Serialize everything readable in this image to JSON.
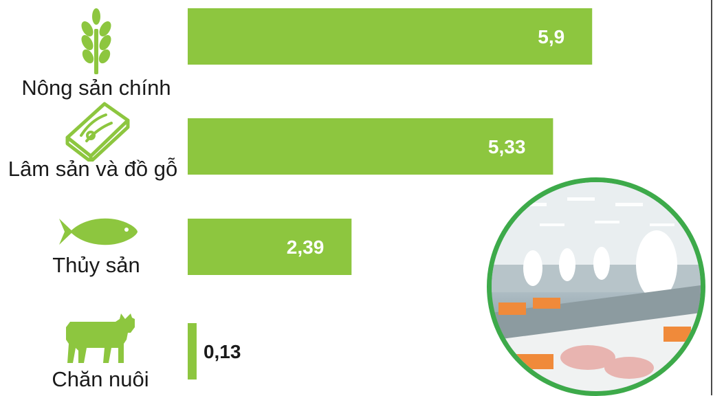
{
  "colors": {
    "bar": "#8dc63f",
    "inner_label": "#ffffff",
    "outer_label": "#1a1a1a",
    "photo_ring": "#3daa4a"
  },
  "chart_data": {
    "type": "bar",
    "orientation": "horizontal",
    "categories": [
      "Nông sản chính",
      "Lâm sản và đồ gỗ",
      "Thủy sản",
      "Chăn nuôi"
    ],
    "values": [
      5.9,
      5.33,
      2.39,
      0.13
    ],
    "data_labels": [
      "5,9",
      "5,33",
      "2,39",
      "0,13"
    ],
    "icons": [
      "wheat-icon",
      "timber-icon",
      "fish-icon",
      "cow-icon"
    ],
    "xlim": [
      0,
      6.4
    ],
    "grid": false,
    "legend": "none"
  },
  "photo": {
    "subject": "seafood-processing-factory-photo"
  }
}
